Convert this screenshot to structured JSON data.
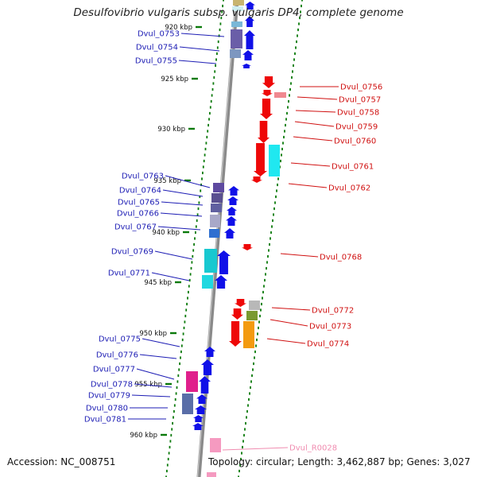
{
  "title": "Desulfovibrio vulgaris subsp. vulgaris DP4, complete genome",
  "footer": {
    "accession": "Accession: NC_008751",
    "summary": "Topology: circular; Length: 3,462,887 bp; Genes: 3,027"
  },
  "colors": {
    "forward_label": "#1c1cb4",
    "reverse_label": "#d01010",
    "rna_label": "#f08cb0",
    "backbone": "#8a8a8a",
    "tick": "#0a7a0a"
  },
  "kbp_marks": [
    "920 kbp",
    "925 kbp",
    "930 kbp",
    "935 kbp",
    "940 kbp",
    "945 kbp",
    "950 kbp",
    "955 kbp",
    "960 kbp"
  ],
  "forward_genes": [
    {
      "id": "Dvul_0753"
    },
    {
      "id": "Dvul_0754"
    },
    {
      "id": "Dvul_0755"
    },
    {
      "id": "Dvul_0763"
    },
    {
      "id": "Dvul_0764"
    },
    {
      "id": "Dvul_0765"
    },
    {
      "id": "Dvul_0766"
    },
    {
      "id": "Dvul_0767"
    },
    {
      "id": "Dvul_0769"
    },
    {
      "id": "Dvul_0771"
    },
    {
      "id": "Dvul_0775"
    },
    {
      "id": "Dvul_0776"
    },
    {
      "id": "Dvul_0777"
    },
    {
      "id": "Dvul_0778"
    },
    {
      "id": "Dvul_0779"
    },
    {
      "id": "Dvul_0780"
    },
    {
      "id": "Dvul_0781"
    }
  ],
  "reverse_genes": [
    {
      "id": "Dvul_0756"
    },
    {
      "id": "Dvul_0757"
    },
    {
      "id": "Dvul_0758"
    },
    {
      "id": "Dvul_0759"
    },
    {
      "id": "Dvul_0760"
    },
    {
      "id": "Dvul_0761"
    },
    {
      "id": "Dvul_0762"
    },
    {
      "id": "Dvul_0768"
    },
    {
      "id": "Dvul_0772"
    },
    {
      "id": "Dvul_0773"
    },
    {
      "id": "Dvul_0774"
    }
  ],
  "rna_genes": [
    {
      "id": "Dvul_R0028"
    }
  ]
}
